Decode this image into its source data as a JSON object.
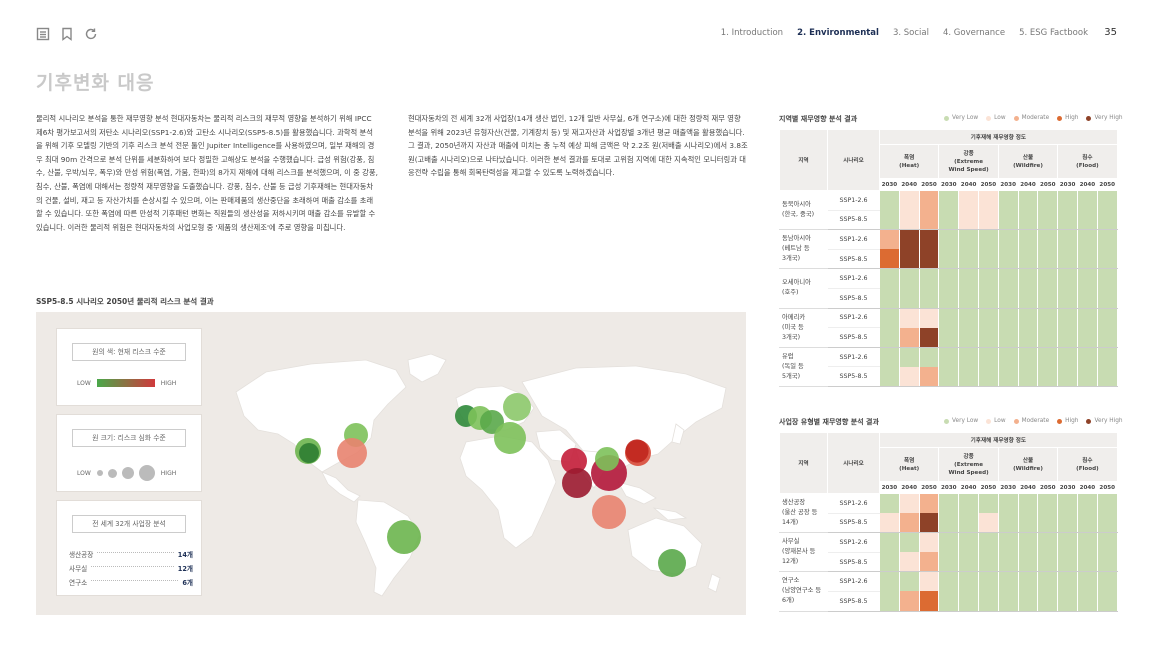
{
  "nav": {
    "items": [
      "1. Introduction",
      "2. Environmental",
      "3. Social",
      "4. Governance",
      "5. ESG Factbook"
    ],
    "active_index": 1,
    "page_number": "35"
  },
  "heading": "기후변화 대응",
  "paragraphs": {
    "left": "물리적 시나리오 분석을 통한 재무영향 분석     현대자동차는 물리적 리스크의 재무적 영향을 분석하기 위해 IPCC 제6차 평가보고서의 저탄소 시나리오(SSP1-2.6)와 고탄소 시나리오(SSP5-8.5)를 활용했습니다. 과학적 분석을 위해 기후 모델링 기반의 기후 리스크 분석 전문 툴인 Jupiter Intelligence를 사용하였으며, 일부 재해의 경우 최대 90m 간격으로 분석 단위를 세분화하여 보다 정밀한 고해상도 분석을 수행했습니다. 급성 위험(강풍, 침수, 산불, 우박/뇌우, 폭우)와 만성 위험(폭염, 가뭄, 한파)의 8가지 재해에 대해 리스크를 분석했으며, 이 중 강풍, 침수, 산불, 폭염에 대해서는 정량적 재무영향을 도출했습니다. 강풍, 침수, 산불 등 급성 기후재해는 현대자동차의 건물, 설비, 재고 등 자산가치를 손상시킬 수 있으며, 이는 판매제품의 생산중단을 초래하여 매출 감소를 초래할 수 있습니다.  또한 폭염에 따른 만성적 기후패턴 변화는 직원들의 생산성을 저하시키며 매출 감소를 유발할 수 있습니다. 이러한 물리적 위험은 현대자동차의 사업모형 중 '제품의 생산제조'에 주로 영향을 미칩니다.",
    "right": "현대자동차의 전 세계 32개 사업장(14개 생산 법인, 12개 일반 사무실, 6개 연구소)에 대한 정량적 재무 영향 분석을 위해 2023년 유형자산(건물, 기계장치 등) 및 재고자산과 사업장별 3개년 평균 매출액을 활용했습니다. 그 결과, 2050년까지 자산과 매출에 미치는 총 누적 예상 피해 금액은 약 2.2조 원(저배출 시나리오)에서 3.8조 원(고배출 시나리오)으로 나타났습니다. 이러한 분석 결과를 토대로 고위험 지역에 대한 지속적인 모니터링과 대응전략 수립을 통해 회복탄력성을 제고할 수 있도록 노력하겠습니다."
  },
  "map_section": {
    "title": "SSP5-8.5 시나리오 2050년 물리적 리스크 분석 결과",
    "card_color": {
      "title": "원의 색: 현재 리스크 수준",
      "low": "LOW",
      "high": "HIGH"
    },
    "card_size": {
      "title": "원 크기: 리스크 심화 수준",
      "low": "LOW",
      "high": "HIGH"
    },
    "card_sites": {
      "title": "전 세계 32개 사업장 분석",
      "rows": [
        {
          "label": "생산공장",
          "value": "14개"
        },
        {
          "label": "사무실",
          "value": "12개"
        },
        {
          "label": "연구소",
          "value": "6개"
        }
      ]
    },
    "bubbles": [
      {
        "color": "#6cb54e",
        "level": 0.35
      },
      {
        "color": "#2e7d32",
        "level": 0.2
      },
      {
        "color": "#7dc15a",
        "level": 0.3
      },
      {
        "color": "#e8836f",
        "level": 0.45
      },
      {
        "color": "#2f8a3a",
        "level": 0.25
      },
      {
        "color": "#7dc15a",
        "level": 0.3
      },
      {
        "color": "#5aa84a",
        "level": 0.3
      },
      {
        "color": "#8cc86a",
        "level": 0.4
      },
      {
        "color": "#7dc15a",
        "level": 0.5
      },
      {
        "color": "#c41e3a",
        "level": 0.35
      },
      {
        "color": "#9b1b30",
        "level": 0.45
      },
      {
        "color": "#b3173a",
        "level": 0.6
      },
      {
        "color": "#7dc15a",
        "level": 0.3
      },
      {
        "color": "#d84b3a",
        "level": 0.35
      },
      {
        "color": "#c0261e",
        "level": 0.28
      },
      {
        "color": "#e8836f",
        "level": 0.55
      },
      {
        "color": "#6cb54e",
        "level": 0.55
      },
      {
        "color": "#5aa84a",
        "level": 0.4
      }
    ]
  },
  "risk_legend": [
    {
      "label": "Very Low",
      "color": "#c8dcb2"
    },
    {
      "label": "Low",
      "color": "#fbe3d6"
    },
    {
      "label": "Moderate",
      "color": "#f3b18e"
    },
    {
      "label": "High",
      "color": "#dc6b32"
    },
    {
      "label": "Very High",
      "color": "#8e4228"
    }
  ],
  "table_headers": {
    "group": "기후재해 재무영향 정도",
    "hazards": [
      "폭염\n(Heat)",
      "강풍\n(Extreme\nWind Speed)",
      "산불\n(Wildfire)",
      "침수\n(Flood)"
    ],
    "years": [
      "2030",
      "2040",
      "2050"
    ]
  },
  "table_region": {
    "title": "지역별 재무영향 분석 결과",
    "col1": "지역",
    "col2": "시나리오",
    "rows": [
      {
        "group": "동북아시아\n(한국, 중국)",
        "scenario": "SSP1-2.6",
        "cells": [
          "VL",
          "L",
          "M",
          "VL",
          "L",
          "L",
          "VL",
          "VL",
          "VL",
          "VL",
          "VL",
          "VL"
        ]
      },
      {
        "group": "",
        "scenario": "SSP5-8.5",
        "cells": [
          "VL",
          "L",
          "M",
          "VL",
          "L",
          "L",
          "VL",
          "VL",
          "VL",
          "VL",
          "VL",
          "VL"
        ]
      },
      {
        "group": "동남아시아\n(베트남 등\n3개국)",
        "scenario": "SSP1-2.6",
        "cells": [
          "M",
          "VH",
          "VH",
          "VL",
          "VL",
          "VL",
          "VL",
          "VL",
          "VL",
          "VL",
          "VL",
          "VL"
        ]
      },
      {
        "group": "",
        "scenario": "SSP5-8.5",
        "cells": [
          "H",
          "VH",
          "VH",
          "VL",
          "VL",
          "VL",
          "VL",
          "VL",
          "VL",
          "VL",
          "VL",
          "VL"
        ]
      },
      {
        "group": "오세아니아\n(호주)",
        "scenario": "SSP1-2.6",
        "cells": [
          "VL",
          "VL",
          "VL",
          "VL",
          "VL",
          "VL",
          "VL",
          "VL",
          "VL",
          "VL",
          "VL",
          "VL"
        ]
      },
      {
        "group": "",
        "scenario": "SSP5-8.5",
        "cells": [
          "VL",
          "VL",
          "VL",
          "VL",
          "VL",
          "VL",
          "VL",
          "VL",
          "VL",
          "VL",
          "VL",
          "VL"
        ]
      },
      {
        "group": "아메리카\n(미국 등\n3개국)",
        "scenario": "SSP1-2.6",
        "cells": [
          "VL",
          "L",
          "L",
          "VL",
          "VL",
          "VL",
          "VL",
          "VL",
          "VL",
          "VL",
          "VL",
          "VL"
        ]
      },
      {
        "group": "",
        "scenario": "SSP5-8.5",
        "cells": [
          "VL",
          "M",
          "VH",
          "VL",
          "VL",
          "VL",
          "VL",
          "VL",
          "VL",
          "VL",
          "VL",
          "VL"
        ]
      },
      {
        "group": "유럽\n(독일 등\n5개국)",
        "scenario": "SSP1-2.6",
        "cells": [
          "VL",
          "VL",
          "VL",
          "VL",
          "VL",
          "VL",
          "VL",
          "VL",
          "VL",
          "VL",
          "VL",
          "VL"
        ]
      },
      {
        "group": "",
        "scenario": "SSP5-8.5",
        "cells": [
          "VL",
          "L",
          "M",
          "VL",
          "VL",
          "VL",
          "VL",
          "VL",
          "VL",
          "VL",
          "VL",
          "VL"
        ]
      }
    ]
  },
  "table_site": {
    "title": "사업장 유형별 재무영향 분석 결과",
    "col1": "지역",
    "col2": "시나리오",
    "rows": [
      {
        "group": "생산공장\n(울산 공장 등\n14개)",
        "scenario": "SSP1-2.6",
        "cells": [
          "VL",
          "L",
          "M",
          "VL",
          "VL",
          "VL",
          "VL",
          "VL",
          "VL",
          "VL",
          "VL",
          "VL"
        ]
      },
      {
        "group": "",
        "scenario": "SSP5-8.5",
        "cells": [
          "L",
          "M",
          "VH",
          "VL",
          "VL",
          "L",
          "VL",
          "VL",
          "VL",
          "VL",
          "VL",
          "VL"
        ]
      },
      {
        "group": "사무실\n(양재본사 등\n12개)",
        "scenario": "SSP1-2.6",
        "cells": [
          "VL",
          "VL",
          "L",
          "VL",
          "VL",
          "VL",
          "VL",
          "VL",
          "VL",
          "VL",
          "VL",
          "VL"
        ]
      },
      {
        "group": "",
        "scenario": "SSP5-8.5",
        "cells": [
          "VL",
          "L",
          "M",
          "VL",
          "VL",
          "VL",
          "VL",
          "VL",
          "VL",
          "VL",
          "VL",
          "VL"
        ]
      },
      {
        "group": "연구소\n(남양연구소 등\n6개)",
        "scenario": "SSP1-2.6",
        "cells": [
          "VL",
          "VL",
          "L",
          "VL",
          "VL",
          "VL",
          "VL",
          "VL",
          "VL",
          "VL",
          "VL",
          "VL"
        ]
      },
      {
        "group": "",
        "scenario": "SSP5-8.5",
        "cells": [
          "VL",
          "M",
          "H",
          "VL",
          "VL",
          "VL",
          "VL",
          "VL",
          "VL",
          "VL",
          "VL",
          "VL"
        ]
      }
    ]
  }
}
